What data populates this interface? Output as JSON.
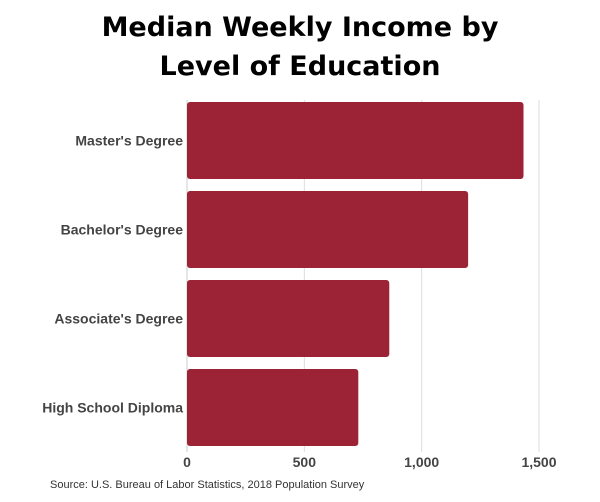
{
  "chart_data": {
    "type": "bar",
    "orientation": "horizontal",
    "title_lines": [
      "Median Weekly Income by",
      "Level of Education"
    ],
    "categories": [
      "Master's Degree",
      "Bachelor's Degree",
      "Associate's Degree",
      "High School Diploma"
    ],
    "values": [
      1434,
      1198,
      862,
      730
    ],
    "xlim": [
      0,
      1500
    ],
    "xticks": [
      0,
      500,
      1000,
      1500
    ],
    "xtick_labels": [
      "0",
      "500",
      "1,000",
      "1,500"
    ],
    "xlabel": "",
    "ylabel": "",
    "grid": true,
    "bar_color": "#9b2335",
    "source": "Source: U.S. Bureau of Labor Statistics, 2018 Population Survey"
  }
}
